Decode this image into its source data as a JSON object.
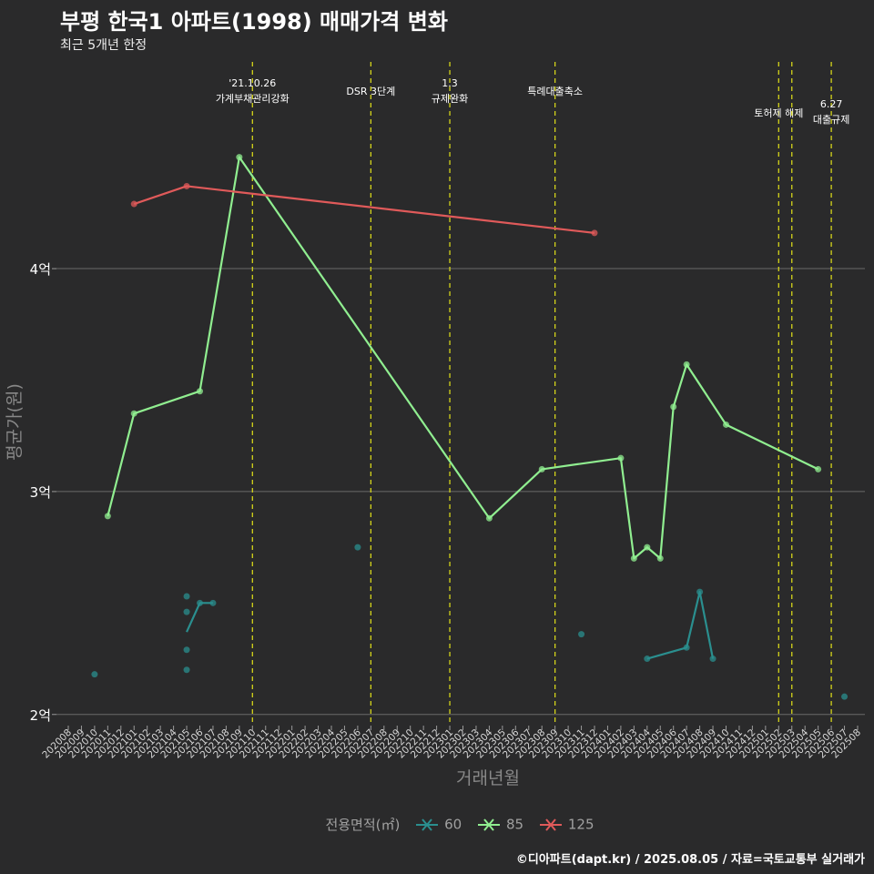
{
  "header": {
    "title": "부평 한국1 아파트(1998) 매매가격 변화",
    "subtitle": "최근 5개년 한정"
  },
  "caption": "©디아파트(dapt.kr) / 2025.08.05 / 자료=국토교통부 실거래가",
  "legend": {
    "title": "전용면적(㎡)",
    "items": [
      {
        "label": "60",
        "color": "#2a8f8f"
      },
      {
        "label": "85",
        "color": "#90ee90"
      },
      {
        "label": "125",
        "color": "#e05a5a"
      }
    ]
  },
  "chart_data": {
    "type": "line",
    "xlabel": "거래년월",
    "ylabel": "평균가(원)",
    "ylim": [
      1.95,
      4.96
    ],
    "yticks": [
      {
        "value": 2,
        "label": "2억"
      },
      {
        "value": 3,
        "label": "3억"
      },
      {
        "value": 4,
        "label": "4억"
      }
    ],
    "categories": [
      "202008",
      "202009",
      "202010",
      "202011",
      "202012",
      "202101",
      "202102",
      "202103",
      "202104",
      "202105",
      "202106",
      "202107",
      "202108",
      "202109",
      "202110",
      "202111",
      "202112",
      "202201",
      "202202",
      "202203",
      "202204",
      "202205",
      "202206",
      "202207",
      "202208",
      "202209",
      "202210",
      "202211",
      "202212",
      "202301",
      "202302",
      "202303",
      "202304",
      "202305",
      "202306",
      "202307",
      "202308",
      "202309",
      "202310",
      "202311",
      "202312",
      "202401",
      "202402",
      "202403",
      "202404",
      "202405",
      "202406",
      "202407",
      "202408",
      "202409",
      "202410",
      "202411",
      "202412",
      "202501",
      "202502",
      "202503",
      "202504",
      "202505",
      "202506",
      "202507",
      "202508"
    ],
    "series": [
      {
        "name": "60",
        "color": "#2a8f8f",
        "line": [
          [
            "202105",
            2.37
          ],
          [
            "202106",
            2.5
          ],
          [
            "202107",
            2.5
          ]
        ],
        "line2": [
          [
            "202404",
            2.25
          ],
          [
            "202407",
            2.3
          ],
          [
            "202408",
            2.55
          ],
          [
            "202409",
            2.25
          ]
        ],
        "points": [
          [
            "202010",
            2.18
          ],
          [
            "202105",
            2.53
          ],
          [
            "202105",
            2.46
          ],
          [
            "202105",
            2.29
          ],
          [
            "202105",
            2.2
          ],
          [
            "202106",
            2.5
          ],
          [
            "202107",
            2.5
          ],
          [
            "202206",
            2.75
          ],
          [
            "202311",
            2.36
          ],
          [
            "202404",
            2.25
          ],
          [
            "202407",
            2.3
          ],
          [
            "202408",
            2.55
          ],
          [
            "202409",
            2.25
          ],
          [
            "202507",
            2.08
          ]
        ]
      },
      {
        "name": "85",
        "color": "#90ee90",
        "line": [
          [
            "202011",
            2.89
          ],
          [
            "202101",
            3.35
          ],
          [
            "202106",
            3.45
          ],
          [
            "202109",
            4.5
          ],
          [
            "202304",
            2.88
          ],
          [
            "202308",
            3.1
          ],
          [
            "202402",
            3.15
          ],
          [
            "202403",
            2.7
          ],
          [
            "202404",
            2.75
          ],
          [
            "202405",
            2.7
          ],
          [
            "202406",
            3.38
          ],
          [
            "202407",
            3.57
          ],
          [
            "202410",
            3.3
          ],
          [
            "202505",
            3.1
          ]
        ],
        "points": [
          [
            "202011",
            2.89
          ],
          [
            "202101",
            3.35
          ],
          [
            "202106",
            3.45
          ],
          [
            "202109",
            4.5
          ],
          [
            "202304",
            2.88
          ],
          [
            "202308",
            3.1
          ],
          [
            "202402",
            3.15
          ],
          [
            "202403",
            2.7
          ],
          [
            "202404",
            2.75
          ],
          [
            "202405",
            2.7
          ],
          [
            "202406",
            3.38
          ],
          [
            "202407",
            3.57
          ],
          [
            "202410",
            3.3
          ],
          [
            "202505",
            3.1
          ]
        ]
      },
      {
        "name": "125",
        "color": "#e05a5a",
        "line": [
          [
            "202101",
            4.29
          ],
          [
            "202105",
            4.37
          ],
          [
            "202312",
            4.16
          ]
        ],
        "points": [
          [
            "202101",
            4.29
          ],
          [
            "202105",
            4.37
          ],
          [
            "202312",
            4.16
          ]
        ]
      }
    ],
    "events": [
      {
        "x": "202110",
        "lines": [
          "'21.10.26",
          "가계부채관리강화"
        ],
        "level": 0
      },
      {
        "x": "202207",
        "lines": [
          "DSR 3단계"
        ],
        "level": 2
      },
      {
        "x": "202301",
        "lines": [
          "1.3",
          "규제완화"
        ],
        "level": 0
      },
      {
        "x": "202309",
        "lines": [
          "특례대출축소"
        ],
        "level": 2
      },
      {
        "x": "202502",
        "lines": [
          "토허제 해제"
        ],
        "level": 1
      },
      {
        "x": "202503",
        "lines": [],
        "level": 1
      },
      {
        "x": "202506",
        "lines": [
          "6.27",
          "대출규제"
        ],
        "level": 3
      }
    ]
  }
}
